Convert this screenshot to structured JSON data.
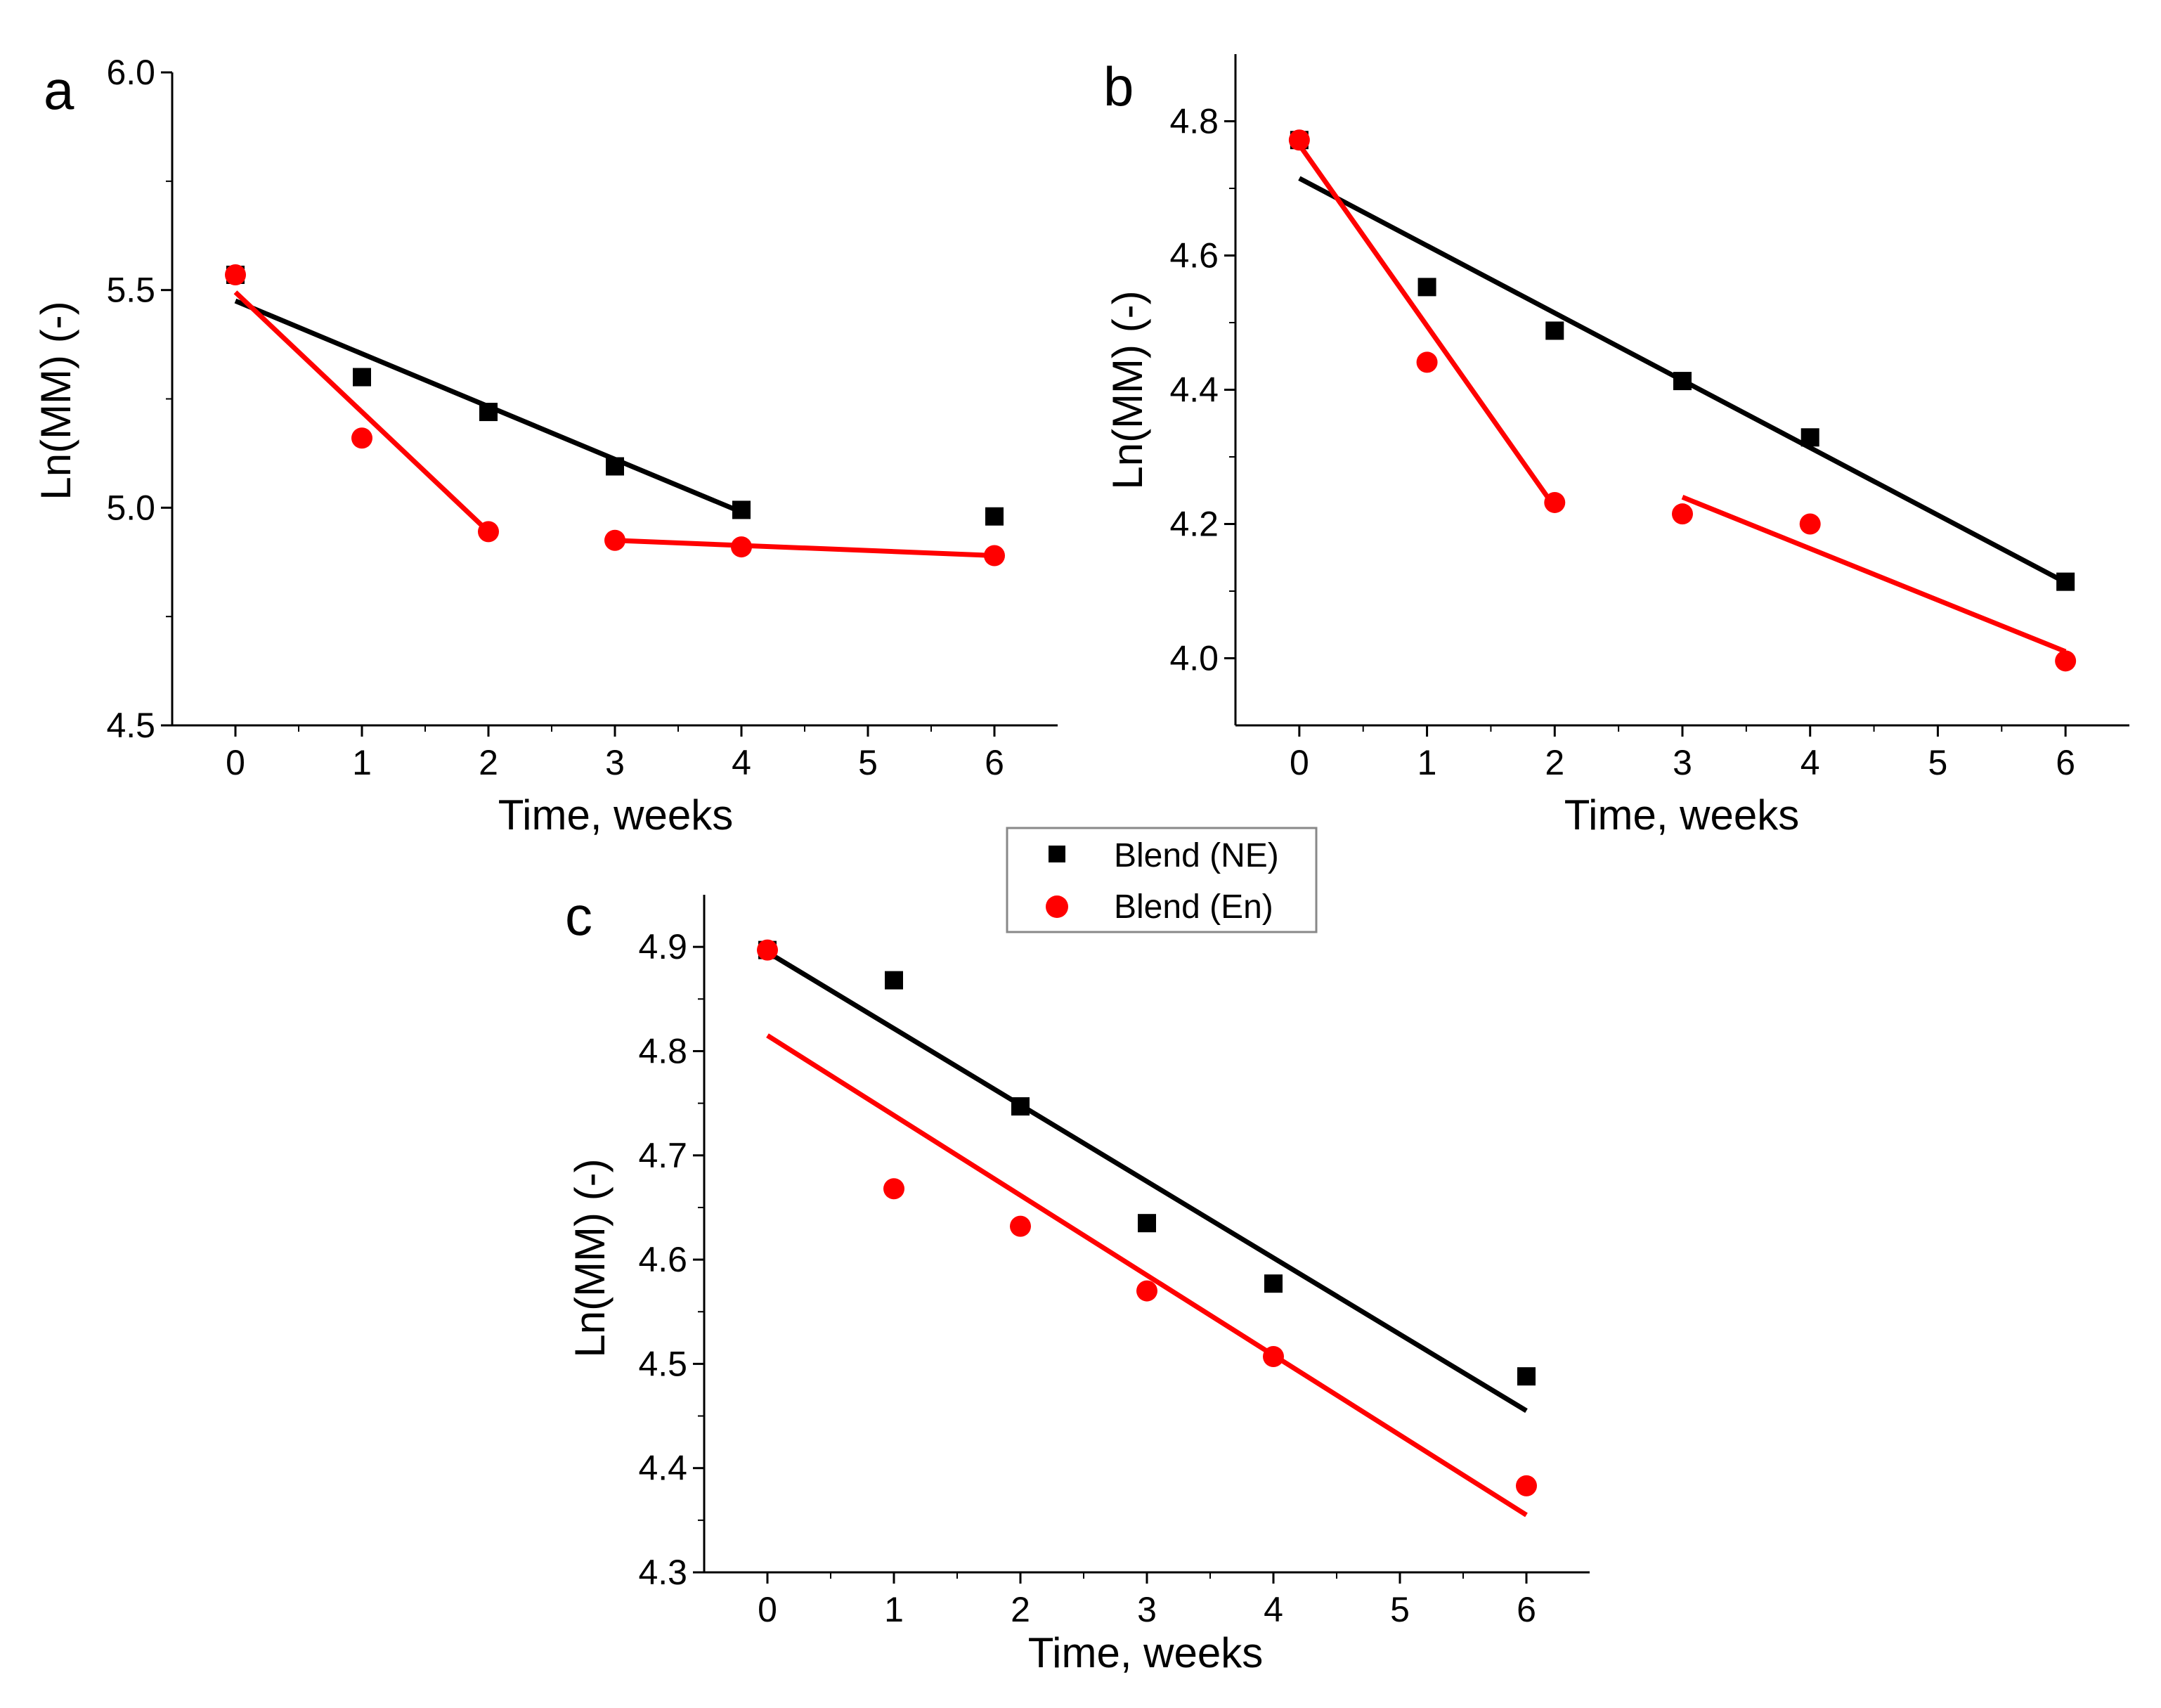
{
  "panels": [
    {
      "label": "a",
      "xlabel": "Time, weeks",
      "ylabel": "Ln(MM) (-)",
      "xlim": [
        -0.5,
        6.5
      ],
      "ylim": [
        4.5,
        6.0
      ],
      "xticks": [
        0,
        1,
        2,
        3,
        4,
        5,
        6
      ],
      "xtick_labels": [
        "0",
        "1",
        "2",
        "3",
        "4",
        "5",
        "6"
      ],
      "yticks": [
        4.5,
        5.0,
        5.5,
        6.0
      ],
      "ytick_labels": [
        "4.5",
        "5.0",
        "5.5",
        "6.0"
      ]
    },
    {
      "label": "b",
      "xlabel": "Time, weeks",
      "ylabel": "Ln(MM) (-)",
      "xlim": [
        -0.5,
        6.5
      ],
      "ylim": [
        3.9,
        4.9
      ],
      "xticks": [
        0,
        1,
        2,
        3,
        4,
        5,
        6
      ],
      "xtick_labels": [
        "0",
        "1",
        "2",
        "3",
        "4",
        "5",
        "6"
      ],
      "yticks": [
        4.0,
        4.2,
        4.4,
        4.6,
        4.8
      ],
      "ytick_labels": [
        "4.0",
        "4.2",
        "4.4",
        "4.6",
        "4.8"
      ]
    },
    {
      "label": "c",
      "xlabel": "Time, weeks",
      "ylabel": "Ln(MM) (-)",
      "xlim": [
        -0.5,
        6.5
      ],
      "ylim": [
        4.3,
        4.95
      ],
      "xticks": [
        0,
        1,
        2,
        3,
        4,
        5,
        6
      ],
      "xtick_labels": [
        "0",
        "1",
        "2",
        "3",
        "4",
        "5",
        "6"
      ],
      "yticks": [
        4.3,
        4.4,
        4.5,
        4.6,
        4.7,
        4.8,
        4.9
      ],
      "ytick_labels": [
        "4.3",
        "4.4",
        "4.5",
        "4.6",
        "4.7",
        "4.8",
        "4.9"
      ]
    }
  ],
  "legend": {
    "placement": "center, between panels",
    "items": [
      {
        "label": "Blend (NE)",
        "color": "#000000",
        "marker": "square"
      },
      {
        "label": "Blend (En)",
        "color": "#ff0000",
        "marker": "circle"
      }
    ]
  },
  "chart_data": [
    {
      "panel": "a",
      "type": "scatter",
      "xlabel": "Time, weeks",
      "ylabel": "Ln(MM) (-)",
      "xlim": [
        -0.5,
        6.5
      ],
      "ylim": [
        4.5,
        6.0
      ],
      "series": [
        {
          "name": "Blend (NE)",
          "color": "#000000",
          "marker": "square",
          "x": [
            0,
            1,
            2,
            3,
            4,
            6
          ],
          "y": [
            5.535,
            5.3,
            5.22,
            5.095,
            4.995,
            4.98
          ]
        },
        {
          "name": "Blend (En)",
          "color": "#ff0000",
          "marker": "circle",
          "x": [
            0,
            1,
            2,
            3,
            4,
            6
          ],
          "y": [
            5.535,
            5.16,
            4.945,
            4.925,
            4.91,
            4.89
          ]
        }
      ],
      "fits": [
        {
          "series": "Blend (NE)",
          "color": "#000000",
          "x": [
            0,
            4
          ],
          "y": [
            5.475,
            4.99
          ]
        },
        {
          "series": "Blend (En)",
          "color": "#ff0000",
          "x": [
            0,
            2
          ],
          "y": [
            5.495,
            4.945
          ]
        },
        {
          "series": "Blend (En)",
          "color": "#ff0000",
          "x": [
            3,
            6
          ],
          "y": [
            4.925,
            4.89
          ]
        }
      ]
    },
    {
      "panel": "b",
      "type": "scatter",
      "xlabel": "Time, weeks",
      "ylabel": "Ln(MM) (-)",
      "xlim": [
        -0.5,
        6.5
      ],
      "ylim": [
        3.9,
        4.9
      ],
      "series": [
        {
          "name": "Blend (NE)",
          "color": "#000000",
          "marker": "square",
          "x": [
            0,
            1,
            2,
            3,
            4,
            6
          ],
          "y": [
            4.772,
            4.553,
            4.488,
            4.413,
            4.329,
            4.114
          ]
        },
        {
          "name": "Blend (En)",
          "color": "#ff0000",
          "marker": "circle",
          "x": [
            0,
            1,
            2,
            3,
            4,
            6
          ],
          "y": [
            4.772,
            4.441,
            4.232,
            4.215,
            4.2,
            3.996
          ]
        }
      ],
      "fits": [
        {
          "series": "Blend (NE)",
          "color": "#000000",
          "x": [
            0,
            6
          ],
          "y": [
            4.715,
            4.113
          ]
        },
        {
          "series": "Blend (En)",
          "color": "#ff0000",
          "x": [
            0,
            2
          ],
          "y": [
            4.765,
            4.225
          ]
        },
        {
          "series": "Blend (En)",
          "color": "#ff0000",
          "x": [
            3,
            6
          ],
          "y": [
            4.24,
            4.01
          ]
        }
      ]
    },
    {
      "panel": "c",
      "type": "scatter",
      "xlabel": "Time, weeks",
      "ylabel": "Ln(MM) (-)",
      "xlim": [
        -0.5,
        6.5
      ],
      "ylim": [
        4.3,
        4.95
      ],
      "series": [
        {
          "name": "Blend (NE)",
          "color": "#000000",
          "marker": "square",
          "x": [
            0,
            1,
            2,
            3,
            4,
            6
          ],
          "y": [
            4.897,
            4.868,
            4.747,
            4.635,
            4.577,
            4.488
          ]
        },
        {
          "name": "Blend (En)",
          "color": "#ff0000",
          "marker": "circle",
          "x": [
            0,
            1,
            2,
            3,
            4,
            6
          ],
          "y": [
            4.897,
            4.668,
            4.632,
            4.57,
            4.507,
            4.383
          ]
        }
      ],
      "fits": [
        {
          "series": "Blend (NE)",
          "color": "#000000",
          "x": [
            0,
            6
          ],
          "y": [
            4.895,
            4.455
          ]
        },
        {
          "series": "Blend (En)",
          "color": "#ff0000",
          "x": [
            0,
            6
          ],
          "y": [
            4.815,
            4.355
          ]
        }
      ]
    }
  ]
}
